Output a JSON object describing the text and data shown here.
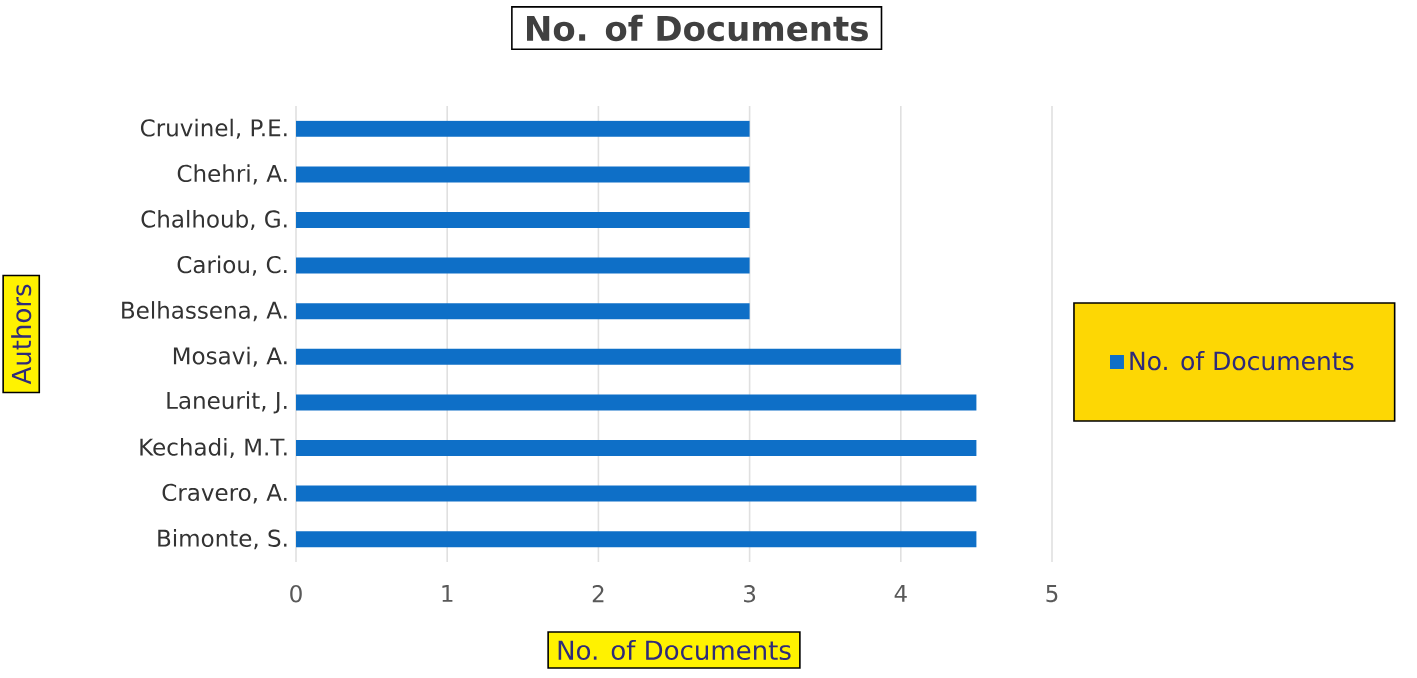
{
  "chart_data": {
    "type": "bar",
    "orientation": "horizontal",
    "title": "No. of Documents",
    "xlabel": "No. of Documents",
    "ylabel": "Authors",
    "categories": [
      "Cruvinel, P.E.",
      "Chehri, A.",
      "Chalhoub, G.",
      "Cariou, C.",
      "Belhassena, A.",
      "Mosavi, A.",
      "Laneurit, J.",
      "Kechadi, M.T.",
      "Cravero, A.",
      "Bimonte, S."
    ],
    "series": [
      {
        "name": "No. of Documents",
        "color": "#0e6fc7",
        "values": [
          3,
          3,
          3,
          3,
          3,
          4,
          4.5,
          4.5,
          4.5,
          4.5
        ]
      }
    ],
    "xlim": [
      0,
      5
    ],
    "xticks": [
      0,
      1,
      2,
      3,
      4,
      5
    ],
    "grid": "x",
    "legend": "right"
  }
}
